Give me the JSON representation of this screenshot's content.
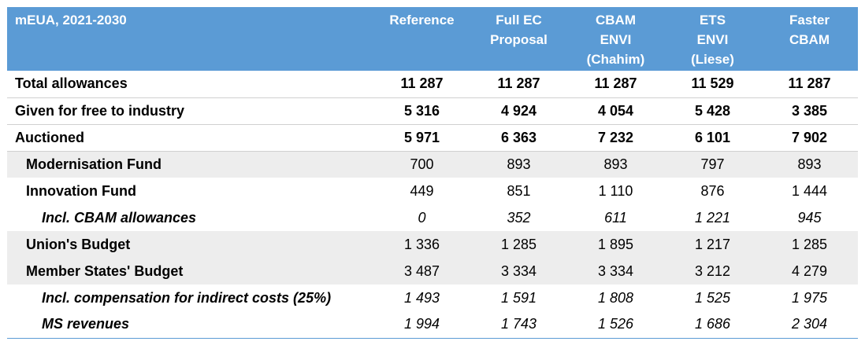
{
  "table": {
    "header": {
      "label": "mEUA, 2021-2030",
      "columns": [
        [
          "Reference"
        ],
        [
          "Full EC",
          "Proposal"
        ],
        [
          "CBAM",
          "ENVI",
          "(Chahim)"
        ],
        [
          "ETS",
          "ENVI",
          "(Liese)"
        ],
        [
          "Faster",
          "CBAM"
        ]
      ]
    },
    "rows": [
      {
        "label": "Total allowances",
        "values": [
          "11 287",
          "11 287",
          "11 287",
          "11 529",
          "11 287"
        ]
      },
      {
        "label": "Given for free to industry",
        "values": [
          "5 316",
          "4 924",
          "4 054",
          "5 428",
          "3 385"
        ]
      },
      {
        "label": "Auctioned",
        "values": [
          "5 971",
          "6 363",
          "7 232",
          "6 101",
          "7 902"
        ]
      },
      {
        "label": "Modernisation Fund",
        "values": [
          "700",
          "893",
          "893",
          "797",
          "893"
        ]
      },
      {
        "label": "Innovation Fund",
        "values": [
          "449",
          "851",
          "1 110",
          "876",
          "1 444"
        ]
      },
      {
        "label": "Incl. CBAM allowances",
        "values": [
          "0",
          "352",
          "611",
          "1 221",
          "945"
        ]
      },
      {
        "label": "Union's Budget",
        "values": [
          "1 336",
          "1 285",
          "1 895",
          "1 217",
          "1 285"
        ]
      },
      {
        "label": "Member States' Budget",
        "values": [
          "3 487",
          "3 334",
          "3 334",
          "3 212",
          "4 279"
        ]
      },
      {
        "label": "Incl. compensation for indirect costs (25%)",
        "values": [
          "1 493",
          "1 591",
          "1 808",
          "1 525",
          "1 975"
        ]
      },
      {
        "label": "MS revenues",
        "values": [
          "1 994",
          "1 743",
          "1 526",
          "1 686",
          "2 304"
        ]
      }
    ]
  },
  "colors": {
    "header_bg": "#5B9BD5",
    "header_text": "#FFFFFF",
    "shaded_row": "#EDEDED"
  }
}
